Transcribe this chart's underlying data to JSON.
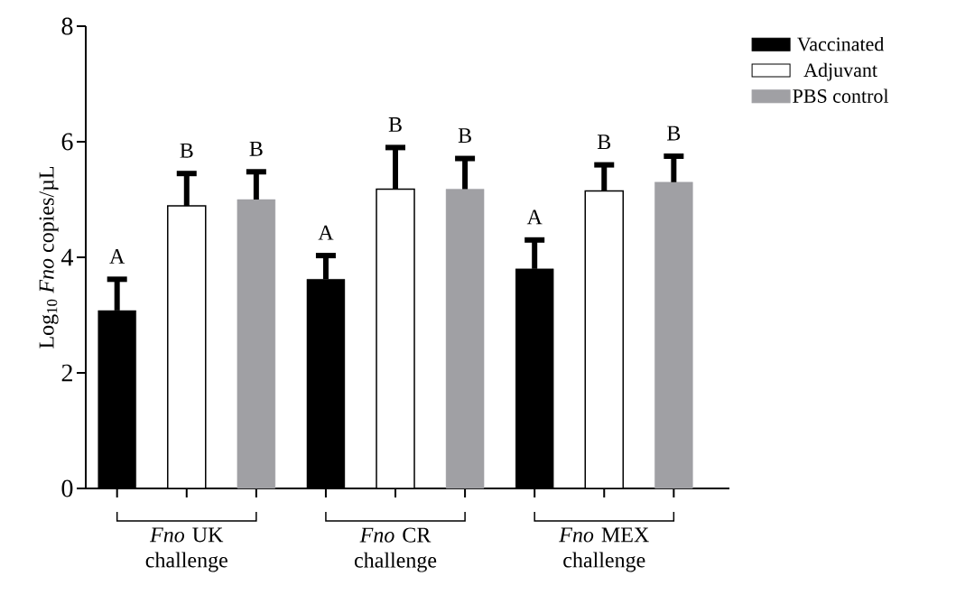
{
  "chart_data": {
    "type": "bar",
    "ylabel": "Log$_{10}$ *Fno* copies/µL",
    "categories": [
      "*Fno* UK challenge",
      "*Fno* CR challenge",
      "*Fno* MEX challenge"
    ],
    "ylim": [
      0,
      8
    ],
    "yticks": [
      0,
      2,
      4,
      6,
      8
    ],
    "legend": "right",
    "series": [
      {
        "name": "Vaccinated",
        "color": "#000000",
        "values": [
          3.08,
          3.62,
          3.8
        ],
        "errors": [
          [
            3.08,
            3.62
          ],
          [
            3.62,
            4.03
          ],
          [
            3.8,
            4.3
          ]
        ]
      },
      {
        "name": "Adjuvant",
        "color": "#ffffff",
        "values": [
          4.89,
          5.18,
          5.15
        ],
        "errors": [
          [
            4.89,
            5.45
          ],
          [
            5.18,
            5.9
          ],
          [
            5.15,
            5.6
          ]
        ]
      },
      {
        "name": "PBS control",
        "color": "#a0a0a4",
        "values": [
          5.0,
          5.18,
          5.3
        ],
        "errors": [
          [
            5.0,
            5.48
          ],
          [
            5.18,
            5.71
          ],
          [
            5.3,
            5.75
          ]
        ]
      }
    ],
    "annotations": [
      "A",
      "B",
      "B",
      "A",
      "B",
      "B",
      "A",
      "B",
      "B"
    ]
  }
}
